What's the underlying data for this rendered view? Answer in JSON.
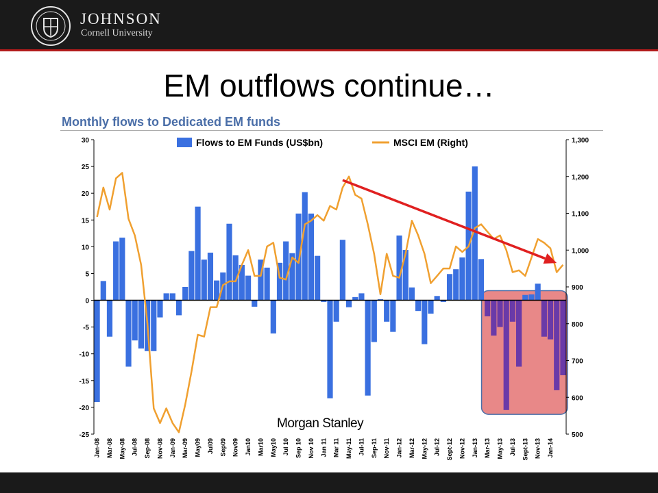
{
  "header": {
    "brand_name": "JOHNSON",
    "brand_sub": "Cornell University"
  },
  "slide": {
    "title": "EM outflows continue…"
  },
  "chart_data": {
    "type": "bar",
    "title": "Monthly flows to Dedicated EM funds",
    "watermark": "Morgan Stanley",
    "legend": {
      "placement": "top",
      "items": [
        "Flows to EM Funds (US$bn)",
        "MSCI EM (Right)"
      ]
    },
    "x_tick_labels": [
      "Jan-08",
      "Mar-08",
      "May-08",
      "Jul-08",
      "Sep-08",
      "Nov-08",
      "Jan-09",
      "Mar-09",
      "May09",
      "Jul09",
      "Sep09",
      "Nov09",
      "Jan10",
      "Mar10",
      "May10",
      "Jul 10",
      "Sep 10",
      "Nov 10",
      "Jan 11",
      "Mar 11",
      "May-11",
      "Jul-11",
      "Sep-11",
      "Nov-11",
      "Jan-12",
      "Mar-12",
      "May-12",
      "Jul-12",
      "Sept-12",
      "Nov-12",
      "Jan-13",
      "Mar-13",
      "May-13",
      "Jul-13",
      "Sept-13",
      "Nov-13",
      "Jan-14"
    ],
    "y_left": {
      "min": -25,
      "max": 30,
      "step": 5
    },
    "y_right": {
      "min": 500,
      "max": 1300,
      "step": 100,
      "ticks": [
        "500",
        "600",
        "700",
        "800",
        "900",
        "1,000",
        "1,100",
        "1,200",
        "1,300"
      ]
    },
    "series": [
      {
        "name": "Flows to EM Funds (US$bn)",
        "type": "bar",
        "axis": "left",
        "color": "#3a70e0",
        "values": [
          -19,
          3.6,
          -6.8,
          11,
          11.7,
          -12.4,
          -7.5,
          -9,
          -9.5,
          -9.5,
          -3.2,
          1.3,
          1.3,
          -2.8,
          2.5,
          9.2,
          17.5,
          7.6,
          8.9,
          3.7,
          5.2,
          14.3,
          8.4,
          6.6,
          4.6,
          -1.2,
          7.6,
          6.1,
          -6.2,
          7,
          11,
          8.8,
          16.2,
          20.2,
          16.2,
          8.3,
          -0.3,
          -18.3,
          -4,
          11.3,
          -1.3,
          0.6,
          1.3,
          -17.8,
          -7.8,
          0.2,
          -4,
          -5.9,
          12.1,
          9.4,
          2.4,
          -2,
          -8.2,
          -2.5,
          0.8,
          -0.3,
          4.9,
          5.8,
          8,
          20.3,
          25,
          7.7,
          -3,
          -6.6,
          -5,
          -20.5,
          -4,
          -12.4,
          1,
          1.1,
          3.1,
          -6.8,
          -7.3,
          -16.8,
          -14
        ]
      },
      {
        "name": "MSCI EM (Right)",
        "type": "line",
        "axis": "right",
        "color": "#f0a030",
        "values": [
          1090,
          1170,
          1110,
          1195,
          1210,
          1085,
          1040,
          960,
          800,
          570,
          530,
          570,
          530,
          505,
          580,
          670,
          770,
          765,
          845,
          845,
          905,
          915,
          915,
          960,
          1000,
          930,
          930,
          1010,
          1020,
          925,
          920,
          980,
          965,
          1070,
          1080,
          1095,
          1080,
          1120,
          1110,
          1170,
          1200,
          1150,
          1140,
          1070,
          990,
          880,
          990,
          930,
          925,
          990,
          1080,
          1040,
          990,
          910,
          930,
          950,
          950,
          1010,
          995,
          1010,
          1060,
          1070,
          1050,
          1030,
          1040,
          1000,
          940,
          945,
          930,
          980,
          1030,
          1020,
          1005,
          940,
          960
        ]
      }
    ],
    "annotations": [
      {
        "type": "arrow",
        "color": "#e02020",
        "from": {
          "index": 39,
          "value": 1190
        },
        "to": {
          "index": 73,
          "value": 965
        }
      },
      {
        "type": "highlight-box",
        "color": "#e06060",
        "from_index": 62,
        "to_index": 74
      }
    ]
  }
}
